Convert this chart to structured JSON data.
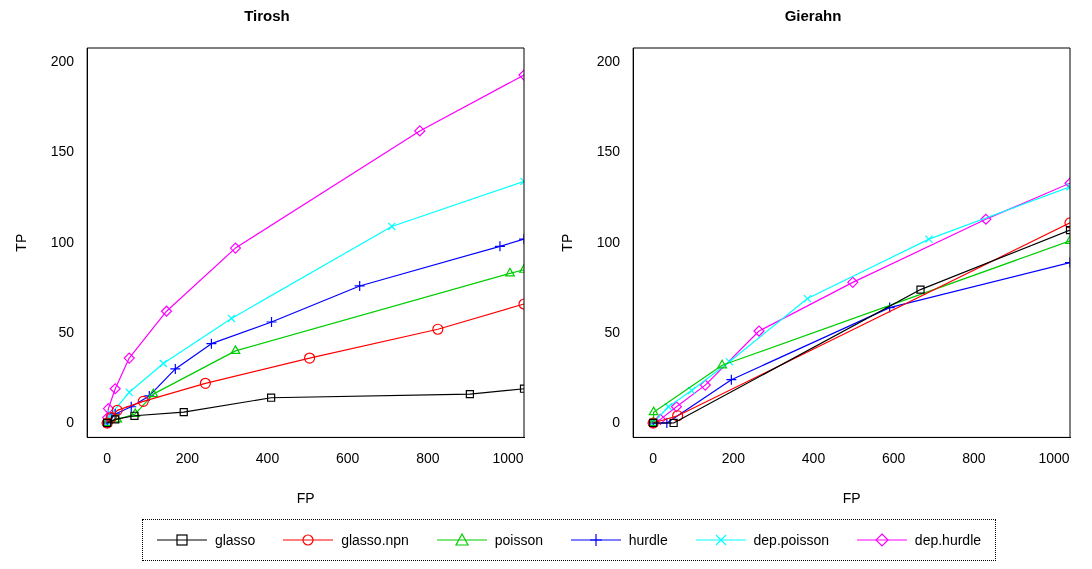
{
  "chart_data": [
    {
      "type": "line",
      "title": "Tirosh",
      "xlabel": "FP",
      "ylabel": "TP",
      "xlim": [
        -50,
        1040
      ],
      "xticks": [
        0,
        200,
        400,
        600,
        800,
        1000
      ],
      "ylim": [
        -8,
        208
      ],
      "yticks": [
        0,
        50,
        100,
        150,
        200
      ],
      "grid": false,
      "legend": "bottom",
      "series": [
        {
          "name": "glasso",
          "color": "#000000",
          "marker": "square",
          "x": [
            0,
            20,
            68,
            191,
            409,
            905,
            1040
          ],
          "values": [
            0,
            2,
            4,
            6,
            14,
            16,
            19
          ]
        },
        {
          "name": "glasso.npn",
          "color": "#ff0000",
          "marker": "circle",
          "x": [
            0,
            10,
            25,
            90,
            245,
            505,
            825,
            1040
          ],
          "values": [
            0,
            3,
            7,
            12,
            22,
            36,
            52,
            66
          ]
        },
        {
          "name": "poisson",
          "color": "#00cd00",
          "marker": "triangle",
          "x": [
            0,
            25,
            70,
            115,
            320,
            1005,
            1040
          ],
          "values": [
            0,
            2,
            5,
            16,
            40,
            83,
            85
          ]
        },
        {
          "name": "hurdle",
          "color": "#0000ff",
          "marker": "plus",
          "x": [
            0,
            20,
            60,
            105,
            170,
            260,
            410,
            630,
            980,
            1040
          ],
          "values": [
            0,
            5,
            9,
            15,
            30,
            44,
            56,
            76,
            98,
            102
          ]
        },
        {
          "name": "dep.poisson",
          "color": "#00ffff",
          "marker": "cross",
          "x": [
            0,
            10,
            55,
            140,
            310,
            710,
            1040
          ],
          "values": [
            0,
            5,
            17,
            33,
            58,
            109,
            134
          ]
        },
        {
          "name": "dep.hurdle",
          "color": "#ff00ff",
          "marker": "diamond",
          "x": [
            0,
            1,
            3,
            20,
            55,
            148,
            320,
            780,
            1040
          ],
          "values": [
            0,
            3,
            8,
            19,
            36,
            62,
            97,
            162,
            193
          ]
        }
      ]
    },
    {
      "type": "line",
      "title": "Gierahn",
      "xlabel": "FP",
      "ylabel": "TP",
      "xlim": [
        -50,
        1040
      ],
      "xticks": [
        0,
        200,
        400,
        600,
        800,
        1000
      ],
      "ylim": [
        -8,
        208
      ],
      "yticks": [
        0,
        50,
        100,
        150,
        200
      ],
      "grid": false,
      "series": [
        {
          "color": "#000000",
          "marker": "square",
          "x": [
            0,
            51,
            667,
            1040
          ],
          "values": [
            0,
            0,
            74,
            107
          ]
        },
        {
          "color": "#ff0000",
          "marker": "circle",
          "x": [
            0,
            61,
            1040
          ],
          "values": [
            0,
            4,
            111
          ]
        },
        {
          "color": "#00cd00",
          "marker": "triangle",
          "x": [
            0,
            1,
            172,
            1040
          ],
          "values": [
            0,
            6,
            32,
            101
          ]
        },
        {
          "color": "#0000ff",
          "marker": "plus",
          "x": [
            0,
            34,
            195,
            590,
            1040
          ],
          "values": [
            0,
            0,
            24,
            64,
            89
          ]
        },
        {
          "color": "#00ffff",
          "marker": "cross",
          "x": [
            0,
            38,
            96,
            190,
            385,
            688,
            1040
          ],
          "values": [
            0,
            9,
            18,
            34,
            69,
            102,
            131
          ]
        },
        {
          "color": "#ff00ff",
          "marker": "diamond",
          "x": [
            0,
            18,
            58,
            130,
            264,
            498,
            830,
            1040
          ],
          "values": [
            0,
            2,
            9,
            21,
            51,
            78,
            113,
            133
          ]
        }
      ]
    }
  ]
}
